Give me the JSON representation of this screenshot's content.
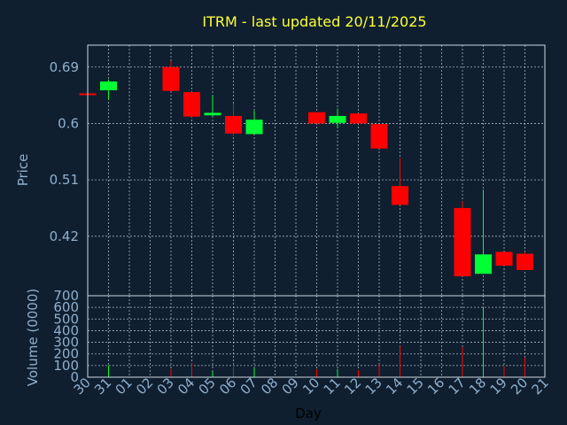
{
  "chart_data": {
    "type": "candlestick",
    "title": "ITRM - last updated 20/11/2025",
    "colors": {
      "up": "#00ff33",
      "down": "#ff0000",
      "background": "#0f1f30",
      "title": "#ffff33",
      "text": "#8fafcc",
      "grid": "#cfd8e0"
    },
    "grid": true,
    "x_tick_labels": [
      "30",
      "31",
      "01",
      "02",
      "03",
      "04",
      "05",
      "06",
      "07",
      "08",
      "09",
      "10",
      "11",
      "12",
      "13",
      "14",
      "15",
      "16",
      "17",
      "18",
      "19",
      "20",
      "21"
    ],
    "xlabel": "Day",
    "price_panel": {
      "ylabel": "Price",
      "ylim": [
        0.325,
        0.725
      ],
      "yticks": [
        0.42,
        0.51,
        0.6,
        0.69
      ],
      "ytick_labels": [
        "0.42",
        "0.51",
        "0.6",
        "0.69"
      ]
    },
    "volume_panel": {
      "ylabel": "Volume (0000)",
      "ylim": [
        0,
        700
      ],
      "yticks": [
        0,
        100,
        200,
        300,
        400,
        500,
        600,
        700
      ],
      "ytick_labels": [
        "0",
        "100",
        "200",
        "300",
        "400",
        "500",
        "600",
        "700"
      ]
    },
    "candles": [
      {
        "x": 0,
        "open": 0.648,
        "high": 0.648,
        "low": 0.646,
        "close": 0.646,
        "volume": 5
      },
      {
        "x": 1,
        "open": 0.653,
        "high": 0.67,
        "low": 0.638,
        "close": 0.667,
        "volume": 100
      },
      {
        "x": 4,
        "open": 0.69,
        "high": 0.7,
        "low": 0.651,
        "close": 0.652,
        "volume": 70
      },
      {
        "x": 5,
        "open": 0.65,
        "high": 0.65,
        "low": 0.61,
        "close": 0.611,
        "volume": 120
      },
      {
        "x": 6,
        "open": 0.613,
        "high": 0.645,
        "low": 0.612,
        "close": 0.617,
        "volume": 50
      },
      {
        "x": 7,
        "open": 0.612,
        "high": 0.632,
        "low": 0.58,
        "close": 0.584,
        "volume": 110
      },
      {
        "x": 8,
        "open": 0.583,
        "high": 0.62,
        "low": 0.583,
        "close": 0.606,
        "volume": 80
      },
      {
        "x": 11,
        "open": 0.618,
        "high": 0.618,
        "low": 0.6,
        "close": 0.6,
        "volume": 70
      },
      {
        "x": 12,
        "open": 0.601,
        "high": 0.624,
        "low": 0.592,
        "close": 0.612,
        "volume": 70
      },
      {
        "x": 13,
        "open": 0.616,
        "high": 0.616,
        "low": 0.6,
        "close": 0.6,
        "volume": 60
      },
      {
        "x": 14,
        "open": 0.599,
        "high": 0.599,
        "low": 0.56,
        "close": 0.56,
        "volume": 110
      },
      {
        "x": 15,
        "open": 0.5,
        "high": 0.545,
        "low": 0.47,
        "close": 0.47,
        "volume": 270
      },
      {
        "x": 18,
        "open": 0.465,
        "high": 0.476,
        "low": 0.356,
        "close": 0.356,
        "volume": 260
      },
      {
        "x": 19,
        "open": 0.36,
        "high": 0.494,
        "low": 0.36,
        "close": 0.391,
        "volume": 600
      },
      {
        "x": 20,
        "open": 0.395,
        "high": 0.395,
        "low": 0.373,
        "close": 0.373,
        "volume": 90
      },
      {
        "x": 21,
        "open": 0.392,
        "high": 0.395,
        "low": 0.366,
        "close": 0.366,
        "volume": 170
      }
    ]
  }
}
